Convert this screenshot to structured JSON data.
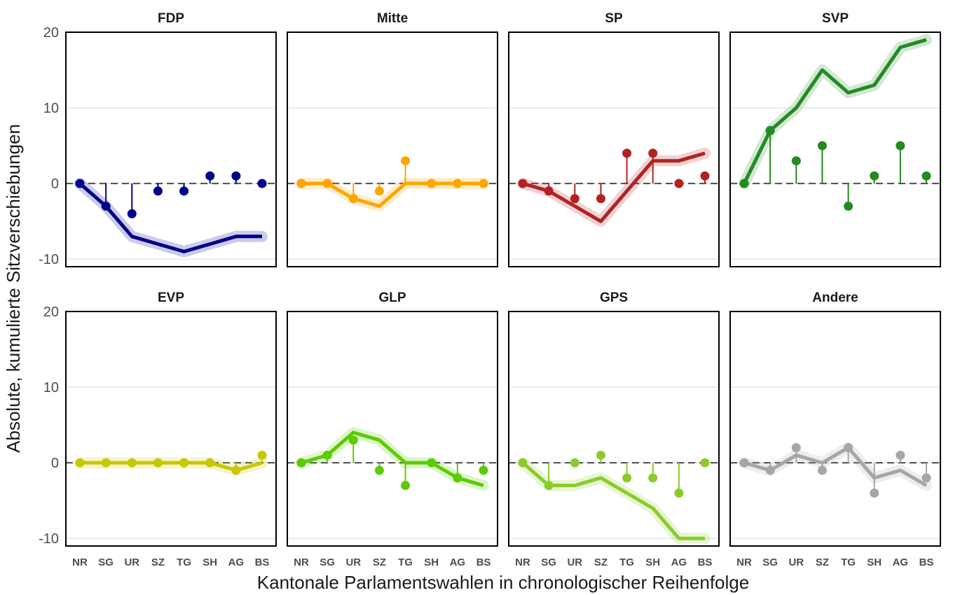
{
  "chart_data": {
    "type": "line",
    "xlabel": "Kantonale Parlamentswahlen in chronologischer Reihenfolge",
    "ylabel": "Absolute, kumulierte Sitzverschiebungen",
    "categories": [
      "NR",
      "SG",
      "UR",
      "SZ",
      "TG",
      "SH",
      "AG",
      "BS"
    ],
    "ylim": [
      -11,
      20
    ],
    "yticks": [
      20,
      10,
      0,
      -10
    ],
    "grid": true,
    "panels": [
      {
        "name": "FDP",
        "color": "#00008B",
        "cumulative": [
          0,
          -3,
          -7,
          -8,
          -9,
          -8,
          -7,
          -7
        ],
        "changes": [
          0,
          -3,
          -4,
          -1,
          -1,
          1,
          1,
          0
        ]
      },
      {
        "name": "Mitte",
        "color": "#FFA500",
        "cumulative": [
          0,
          0,
          -2,
          -3,
          0,
          0,
          0,
          0
        ],
        "changes": [
          0,
          0,
          -2,
          -1,
          3,
          0,
          0,
          0
        ]
      },
      {
        "name": "SP",
        "color": "#B22222",
        "cumulative": [
          0,
          -1,
          -3,
          -5,
          -1,
          3,
          3,
          4
        ],
        "changes": [
          0,
          -1,
          -2,
          -2,
          4,
          4,
          0,
          1
        ]
      },
      {
        "name": "SVP",
        "color": "#228B22",
        "cumulative": [
          0,
          7,
          10,
          15,
          12,
          13,
          18,
          19
        ],
        "changes": [
          0,
          7,
          3,
          5,
          -3,
          1,
          5,
          1
        ]
      },
      {
        "name": "EVP",
        "color": "#C8C800",
        "cumulative": [
          0,
          0,
          0,
          0,
          0,
          0,
          -1,
          0
        ],
        "changes": [
          0,
          0,
          0,
          0,
          0,
          0,
          -1,
          1
        ]
      },
      {
        "name": "GLP",
        "color": "#5BCC00",
        "cumulative": [
          0,
          1,
          4,
          3,
          0,
          0,
          -2,
          -3
        ],
        "changes": [
          0,
          1,
          3,
          -1,
          -3,
          0,
          -2,
          -1
        ]
      },
      {
        "name": "GPS",
        "color": "#8ACB2A",
        "cumulative": [
          0,
          -3,
          -3,
          -2,
          -4,
          -6,
          -10,
          -10
        ],
        "changes": [
          0,
          -3,
          0,
          1,
          -2,
          -2,
          -4,
          0
        ]
      },
      {
        "name": "Andere",
        "color": "#A6A6A6",
        "cumulative": [
          0,
          -1,
          1,
          0,
          2,
          -2,
          -1,
          -3
        ],
        "changes": [
          0,
          -1,
          2,
          -1,
          2,
          -4,
          1,
          -2
        ]
      }
    ]
  }
}
